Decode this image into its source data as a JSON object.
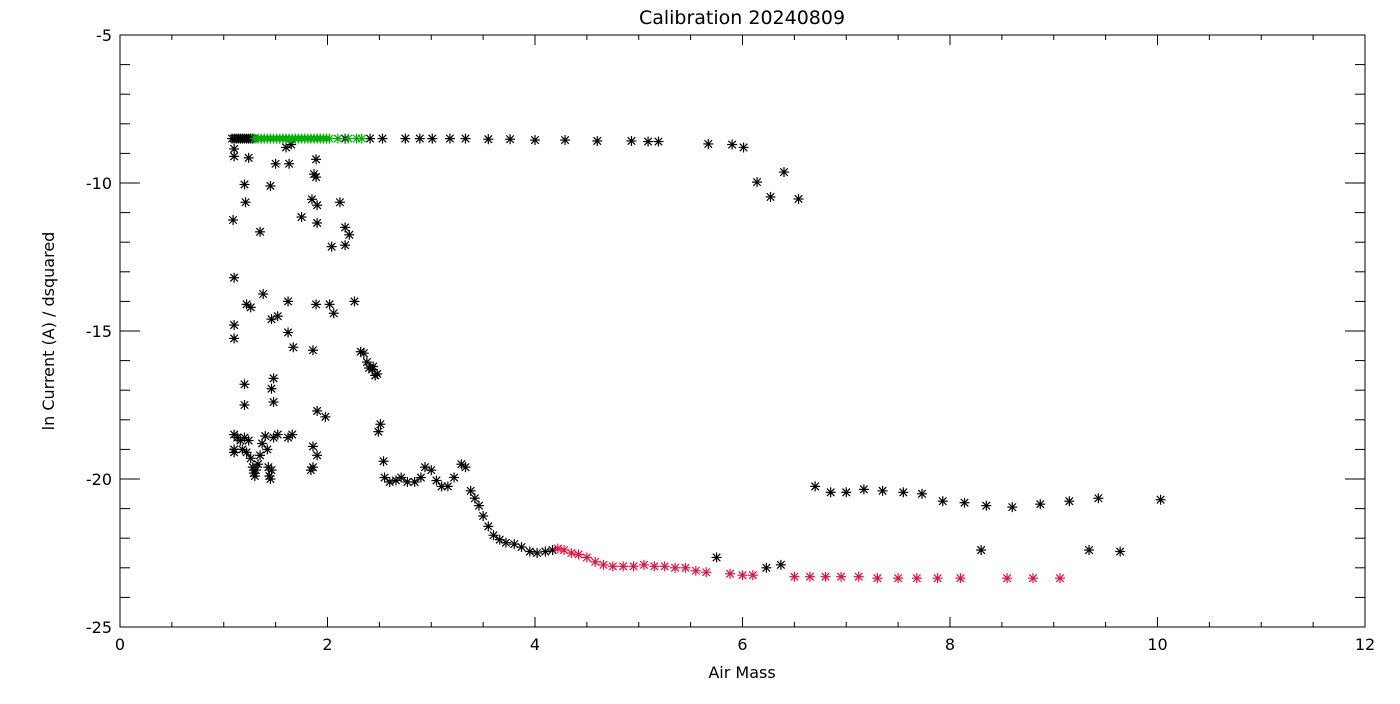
{
  "chart_data": {
    "type": "scatter",
    "title": "Calibration 20240809",
    "xlabel": "Air Mass",
    "ylabel": "ln Current (A) / dsquared",
    "xlim": [
      0,
      12
    ],
    "ylim": [
      -25,
      -5
    ],
    "xticks": [
      0,
      2,
      4,
      6,
      8,
      10,
      12
    ],
    "yticks": [
      -25,
      -20,
      -15,
      -10,
      -5
    ],
    "grid": false,
    "marker": "asterisk",
    "colors": {
      "black": "#000000",
      "green": "#00b000",
      "red": "#e8103c"
    },
    "series": [
      {
        "color": "#000000",
        "points": [
          [
            1.08,
            -8.5
          ],
          [
            1.1,
            -8.5
          ],
          [
            1.12,
            -8.5
          ],
          [
            1.14,
            -8.5
          ],
          [
            1.16,
            -8.5
          ],
          [
            1.18,
            -8.5
          ],
          [
            1.2,
            -8.5
          ],
          [
            1.22,
            -8.5
          ],
          [
            1.24,
            -8.5
          ],
          [
            1.26,
            -8.5
          ],
          [
            1.28,
            -8.5
          ],
          [
            2.17,
            -8.5
          ],
          [
            2.41,
            -8.5
          ],
          [
            2.53,
            -8.5
          ],
          [
            2.75,
            -8.5
          ],
          [
            2.89,
            -8.5
          ],
          [
            3.01,
            -8.5
          ],
          [
            3.18,
            -8.5
          ],
          [
            3.33,
            -8.5
          ],
          [
            3.55,
            -8.52
          ],
          [
            3.76,
            -8.52
          ],
          [
            4.0,
            -8.55
          ],
          [
            4.29,
            -8.55
          ],
          [
            4.6,
            -8.58
          ],
          [
            4.93,
            -8.58
          ],
          [
            5.09,
            -8.6
          ],
          [
            5.19,
            -8.6
          ],
          [
            5.67,
            -8.68
          ],
          [
            5.9,
            -8.7
          ],
          [
            6.01,
            -8.8
          ],
          [
            6.14,
            -9.97
          ],
          [
            6.27,
            -10.47
          ],
          [
            6.4,
            -9.63
          ],
          [
            6.54,
            -10.54
          ],
          [
            1.1,
            -8.85
          ],
          [
            1.1,
            -9.1
          ],
          [
            1.24,
            -9.15
          ],
          [
            1.6,
            -8.8
          ],
          [
            1.65,
            -8.7
          ],
          [
            1.5,
            -9.35
          ],
          [
            1.63,
            -9.35
          ],
          [
            1.87,
            -9.7
          ],
          [
            1.89,
            -9.8
          ],
          [
            1.89,
            -9.2
          ],
          [
            1.2,
            -10.05
          ],
          [
            1.21,
            -10.65
          ],
          [
            1.45,
            -10.1
          ],
          [
            1.35,
            -11.65
          ],
          [
            1.75,
            -11.15
          ],
          [
            1.85,
            -10.55
          ],
          [
            1.9,
            -10.75
          ],
          [
            1.9,
            -11.35
          ],
          [
            2.12,
            -10.65
          ],
          [
            2.17,
            -11.5
          ],
          [
            2.21,
            -11.75
          ],
          [
            2.17,
            -12.1
          ],
          [
            2.04,
            -12.15
          ],
          [
            1.09,
            -11.25
          ],
          [
            1.1,
            -13.2
          ],
          [
            1.1,
            -14.8
          ],
          [
            1.1,
            -15.25
          ],
          [
            1.22,
            -14.1
          ],
          [
            1.26,
            -14.2
          ],
          [
            1.38,
            -13.75
          ],
          [
            1.46,
            -14.6
          ],
          [
            1.52,
            -14.5
          ],
          [
            1.62,
            -14.0
          ],
          [
            1.62,
            -15.05
          ],
          [
            1.67,
            -15.55
          ],
          [
            1.2,
            -16.8
          ],
          [
            1.2,
            -17.5
          ],
          [
            1.46,
            -16.95
          ],
          [
            1.48,
            -16.6
          ],
          [
            1.48,
            -17.4
          ],
          [
            1.86,
            -15.65
          ],
          [
            1.9,
            -17.7
          ],
          [
            1.98,
            -17.9
          ],
          [
            1.89,
            -14.1
          ],
          [
            2.02,
            -14.1
          ],
          [
            2.06,
            -14.4
          ],
          [
            2.26,
            -14.0
          ],
          [
            1.1,
            -18.5
          ],
          [
            1.1,
            -19.0
          ],
          [
            1.1,
            -19.1
          ],
          [
            1.13,
            -18.6
          ],
          [
            1.16,
            -18.7
          ],
          [
            1.18,
            -19.0
          ],
          [
            1.2,
            -18.6
          ],
          [
            1.22,
            -19.1
          ],
          [
            1.24,
            -18.7
          ],
          [
            1.26,
            -19.3
          ],
          [
            1.28,
            -19.6
          ],
          [
            1.29,
            -19.8
          ],
          [
            1.3,
            -19.9
          ],
          [
            1.31,
            -19.7
          ],
          [
            1.33,
            -19.5
          ],
          [
            1.35,
            -19.2
          ],
          [
            1.37,
            -18.8
          ],
          [
            1.4,
            -18.55
          ],
          [
            1.42,
            -19.0
          ],
          [
            1.43,
            -19.6
          ],
          [
            1.44,
            -19.9
          ],
          [
            1.45,
            -20.0
          ],
          [
            1.46,
            -19.7
          ],
          [
            1.48,
            -18.6
          ],
          [
            1.52,
            -18.5
          ],
          [
            1.62,
            -18.6
          ],
          [
            1.66,
            -18.5
          ],
          [
            1.84,
            -19.7
          ],
          [
            1.86,
            -18.9
          ],
          [
            1.86,
            -19.6
          ],
          [
            1.9,
            -19.2
          ],
          [
            2.32,
            -15.7
          ],
          [
            2.35,
            -15.75
          ],
          [
            2.38,
            -16.05
          ],
          [
            2.4,
            -16.25
          ],
          [
            2.43,
            -16.3
          ],
          [
            2.44,
            -16.2
          ],
          [
            2.46,
            -16.5
          ],
          [
            2.48,
            -16.45
          ],
          [
            2.49,
            -18.4
          ],
          [
            2.51,
            -18.15
          ],
          [
            2.54,
            -19.4
          ],
          [
            2.55,
            -19.95
          ],
          [
            2.6,
            -20.1
          ],
          [
            2.66,
            -20.05
          ],
          [
            2.71,
            -19.95
          ],
          [
            2.77,
            -20.1
          ],
          [
            2.84,
            -20.1
          ],
          [
            2.9,
            -19.95
          ],
          [
            2.94,
            -19.6
          ],
          [
            3.0,
            -19.7
          ],
          [
            3.05,
            -20.05
          ],
          [
            3.1,
            -20.25
          ],
          [
            3.16,
            -20.25
          ],
          [
            3.22,
            -19.95
          ],
          [
            3.29,
            -19.5
          ],
          [
            3.33,
            -19.6
          ],
          [
            3.38,
            -20.4
          ],
          [
            3.42,
            -20.65
          ],
          [
            3.46,
            -20.9
          ],
          [
            3.5,
            -21.25
          ],
          [
            3.55,
            -21.6
          ],
          [
            3.6,
            -21.9
          ],
          [
            3.66,
            -22.05
          ],
          [
            3.72,
            -22.15
          ],
          [
            3.8,
            -22.2
          ],
          [
            3.87,
            -22.3
          ],
          [
            3.95,
            -22.45
          ],
          [
            4.02,
            -22.5
          ],
          [
            4.1,
            -22.45
          ],
          [
            4.17,
            -22.4
          ],
          [
            5.75,
            -22.65
          ],
          [
            6.23,
            -23.0
          ],
          [
            6.37,
            -22.9
          ],
          [
            6.7,
            -20.25
          ],
          [
            6.85,
            -20.45
          ],
          [
            7.0,
            -20.45
          ],
          [
            7.17,
            -20.35
          ],
          [
            7.35,
            -20.4
          ],
          [
            7.55,
            -20.45
          ],
          [
            7.73,
            -20.5
          ],
          [
            7.93,
            -20.75
          ],
          [
            8.14,
            -20.8
          ],
          [
            8.35,
            -20.9
          ],
          [
            8.6,
            -20.95
          ],
          [
            8.87,
            -20.85
          ],
          [
            9.15,
            -20.75
          ],
          [
            9.43,
            -20.65
          ],
          [
            10.03,
            -20.7
          ],
          [
            8.3,
            -22.4
          ],
          [
            9.34,
            -22.4
          ],
          [
            9.64,
            -22.45
          ]
        ]
      },
      {
        "color": "#00b000",
        "points": [
          [
            1.3,
            -8.5
          ],
          [
            1.33,
            -8.5
          ],
          [
            1.36,
            -8.5
          ],
          [
            1.39,
            -8.5
          ],
          [
            1.42,
            -8.5
          ],
          [
            1.45,
            -8.5
          ],
          [
            1.48,
            -8.5
          ],
          [
            1.51,
            -8.5
          ],
          [
            1.54,
            -8.5
          ],
          [
            1.57,
            -8.5
          ],
          [
            1.6,
            -8.5
          ],
          [
            1.63,
            -8.5
          ],
          [
            1.66,
            -8.5
          ],
          [
            1.69,
            -8.5
          ],
          [
            1.72,
            -8.5
          ],
          [
            1.75,
            -8.5
          ],
          [
            1.78,
            -8.5
          ],
          [
            1.81,
            -8.5
          ],
          [
            1.84,
            -8.5
          ],
          [
            1.87,
            -8.5
          ],
          [
            1.9,
            -8.5
          ],
          [
            1.93,
            -8.5
          ],
          [
            1.96,
            -8.5
          ],
          [
            1.99,
            -8.5
          ],
          [
            2.02,
            -8.5
          ],
          [
            2.1,
            -8.5
          ],
          [
            2.2,
            -8.5
          ],
          [
            2.28,
            -8.5
          ],
          [
            2.33,
            -8.5
          ]
        ]
      },
      {
        "color": "#e8103c",
        "points": [
          [
            4.22,
            -22.35
          ],
          [
            4.28,
            -22.4
          ],
          [
            4.35,
            -22.5
          ],
          [
            4.42,
            -22.55
          ],
          [
            4.5,
            -22.65
          ],
          [
            4.58,
            -22.8
          ],
          [
            4.66,
            -22.9
          ],
          [
            4.75,
            -22.95
          ],
          [
            4.85,
            -22.95
          ],
          [
            4.95,
            -22.95
          ],
          [
            5.05,
            -22.9
          ],
          [
            5.15,
            -22.95
          ],
          [
            5.25,
            -22.95
          ],
          [
            5.35,
            -23.0
          ],
          [
            5.45,
            -23.0
          ],
          [
            5.55,
            -23.1
          ],
          [
            5.65,
            -23.15
          ],
          [
            5.88,
            -23.2
          ],
          [
            6.0,
            -23.25
          ],
          [
            6.1,
            -23.25
          ],
          [
            6.5,
            -23.3
          ],
          [
            6.65,
            -23.3
          ],
          [
            6.8,
            -23.3
          ],
          [
            6.95,
            -23.3
          ],
          [
            7.12,
            -23.3
          ],
          [
            7.3,
            -23.35
          ],
          [
            7.5,
            -23.35
          ],
          [
            7.68,
            -23.35
          ],
          [
            7.88,
            -23.35
          ],
          [
            8.1,
            -23.35
          ],
          [
            8.55,
            -23.35
          ],
          [
            8.8,
            -23.35
          ],
          [
            9.06,
            -23.35
          ]
        ]
      }
    ]
  }
}
